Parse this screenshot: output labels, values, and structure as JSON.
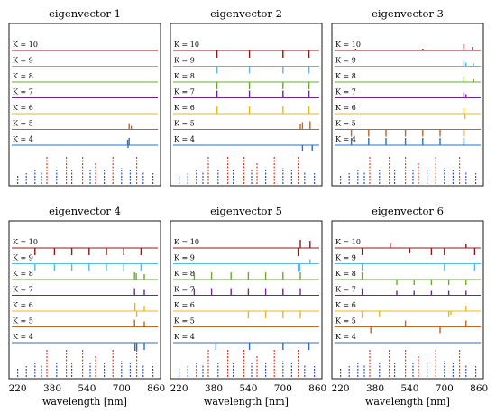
{
  "chart_data": {
    "type": "stem",
    "x_ticks": [
      220,
      380,
      540,
      700,
      860
    ],
    "x_unit_label": "wavelength [nm]",
    "x_range": [
      180,
      880
    ],
    "k_values": [
      10,
      9,
      8,
      7,
      6,
      5,
      4
    ],
    "k_label_prefix": "K = ",
    "row_colors": {
      "10": "#8b1a1a",
      "9": "#5fb4ea",
      "8": "#6aab2e",
      "7": "#6a2a8c",
      "6": "#e7b915",
      "5": "#c1661e",
      "4": "#2e6fc5"
    },
    "baseline_stems": {
      "red": [
        {
          "x": 355,
          "h": 1.0
        },
        {
          "x": 445,
          "h": 1.0
        },
        {
          "x": 520,
          "h": 1.0
        },
        {
          "x": 580,
          "h": 0.8
        },
        {
          "x": 660,
          "h": 1.0
        },
        {
          "x": 770,
          "h": 1.0
        }
      ],
      "blue": [
        {
          "x": 220,
          "h": 0.35
        },
        {
          "x": 260,
          "h": 0.4
        },
        {
          "x": 300,
          "h": 0.5
        },
        {
          "x": 330,
          "h": 0.45
        },
        {
          "x": 400,
          "h": 0.55
        },
        {
          "x": 470,
          "h": 0.5
        },
        {
          "x": 555,
          "h": 0.55
        },
        {
          "x": 620,
          "h": 0.5
        },
        {
          "x": 700,
          "h": 0.6
        },
        {
          "x": 740,
          "h": 0.55
        },
        {
          "x": 800,
          "h": 0.45
        },
        {
          "x": 845,
          "h": 0.4
        }
      ]
    },
    "panels": [
      {
        "title": "eigenvector 1",
        "xlabel": "",
        "rows": [
          {
            "k": 10,
            "stems": []
          },
          {
            "k": 9,
            "stems": []
          },
          {
            "k": 8,
            "stems": []
          },
          {
            "k": 7,
            "stems": []
          },
          {
            "k": 6,
            "stems": []
          },
          {
            "k": 5,
            "stems": [
              {
                "x": 735,
                "v": 0.7
              },
              {
                "x": 745,
                "v": 0.4
              }
            ]
          },
          {
            "k": 4,
            "stems": [
              {
                "x": 728,
                "v": 0.6
              },
              {
                "x": 735,
                "v": 0.8
              },
              {
                "x": 730,
                "v": -0.3
              }
            ]
          }
        ]
      },
      {
        "title": "eigenvector 2",
        "xlabel": "",
        "rows": [
          {
            "k": 10,
            "stems": [
              {
                "x": 395,
                "v": -0.8
              },
              {
                "x": 545,
                "v": -0.8
              },
              {
                "x": 700,
                "v": -0.8
              },
              {
                "x": 820,
                "v": -0.8
              }
            ]
          },
          {
            "k": 9,
            "stems": [
              {
                "x": 395,
                "v": -0.8
              },
              {
                "x": 545,
                "v": -0.8
              },
              {
                "x": 700,
                "v": -0.8
              },
              {
                "x": 820,
                "v": -0.8
              }
            ]
          },
          {
            "k": 8,
            "stems": [
              {
                "x": 395,
                "v": -0.8
              },
              {
                "x": 545,
                "v": -0.8
              },
              {
                "x": 700,
                "v": -0.8
              },
              {
                "x": 820,
                "v": -0.8
              }
            ]
          },
          {
            "k": 7,
            "stems": [
              {
                "x": 395,
                "v": 0.8
              },
              {
                "x": 545,
                "v": 0.8
              },
              {
                "x": 700,
                "v": 0.8
              },
              {
                "x": 820,
                "v": 0.8
              }
            ]
          },
          {
            "k": 6,
            "stems": [
              {
                "x": 395,
                "v": 0.8
              },
              {
                "x": 545,
                "v": 0.8
              },
              {
                "x": 700,
                "v": 0.8
              },
              {
                "x": 820,
                "v": 0.8
              }
            ]
          },
          {
            "k": 5,
            "stems": [
              {
                "x": 780,
                "v": 0.6
              },
              {
                "x": 790,
                "v": 0.8
              },
              {
                "x": 825,
                "v": 0.9
              }
            ]
          },
          {
            "k": 4,
            "stems": [
              {
                "x": 790,
                "v": -0.7
              },
              {
                "x": 835,
                "v": -0.7
              }
            ]
          }
        ]
      },
      {
        "title": "eigenvector 3",
        "xlabel": "",
        "rows": [
          {
            "k": 10,
            "stems": [
              {
                "x": 290,
                "v": 0.2
              },
              {
                "x": 600,
                "v": 0.2
              },
              {
                "x": 790,
                "v": 0.7
              },
              {
                "x": 830,
                "v": 0.4
              }
            ]
          },
          {
            "k": 9,
            "stems": [
              {
                "x": 790,
                "v": 0.6
              },
              {
                "x": 800,
                "v": 0.4
              },
              {
                "x": 835,
                "v": 0.3
              }
            ]
          },
          {
            "k": 8,
            "stems": [
              {
                "x": 790,
                "v": 0.6
              },
              {
                "x": 835,
                "v": 0.3
              }
            ]
          },
          {
            "k": 7,
            "stems": [
              {
                "x": 790,
                "v": 0.6
              },
              {
                "x": 800,
                "v": 0.4
              }
            ]
          },
          {
            "k": 6,
            "stems": [
              {
                "x": 790,
                "v": 0.6
              },
              {
                "x": 795,
                "v": -0.6
              }
            ]
          },
          {
            "k": 5,
            "stems": [
              {
                "x": 270,
                "v": -0.8
              },
              {
                "x": 350,
                "v": -0.8
              },
              {
                "x": 430,
                "v": -0.8
              },
              {
                "x": 520,
                "v": -0.8
              },
              {
                "x": 600,
                "v": -0.8
              },
              {
                "x": 680,
                "v": -0.8
              },
              {
                "x": 790,
                "v": -0.8
              }
            ]
          },
          {
            "k": 4,
            "stems": [
              {
                "x": 270,
                "v": 0.8
              },
              {
                "x": 350,
                "v": 0.8
              },
              {
                "x": 430,
                "v": 0.8
              },
              {
                "x": 520,
                "v": 0.8
              },
              {
                "x": 600,
                "v": 0.8
              },
              {
                "x": 680,
                "v": 0.8
              },
              {
                "x": 790,
                "v": 0.8
              }
            ]
          }
        ]
      },
      {
        "title": "eigenvector 4",
        "xlabel": "wavelength [nm]",
        "rows": [
          {
            "k": 10,
            "stems": [
              {
                "x": 300,
                "v": -0.8
              },
              {
                "x": 390,
                "v": -0.8
              },
              {
                "x": 470,
                "v": -0.8
              },
              {
                "x": 550,
                "v": -0.8
              },
              {
                "x": 630,
                "v": -0.8
              },
              {
                "x": 710,
                "v": -0.8
              },
              {
                "x": 790,
                "v": -0.8
              }
            ]
          },
          {
            "k": 9,
            "stems": [
              {
                "x": 300,
                "v": -0.8
              },
              {
                "x": 390,
                "v": -0.8
              },
              {
                "x": 470,
                "v": -0.8
              },
              {
                "x": 550,
                "v": -0.8
              },
              {
                "x": 630,
                "v": -0.8
              },
              {
                "x": 710,
                "v": -0.8
              },
              {
                "x": 790,
                "v": -0.8
              }
            ]
          },
          {
            "k": 8,
            "stems": [
              {
                "x": 760,
                "v": 0.8
              },
              {
                "x": 768,
                "v": 0.7
              },
              {
                "x": 805,
                "v": 0.6
              }
            ]
          },
          {
            "k": 7,
            "stems": [
              {
                "x": 760,
                "v": 0.8
              },
              {
                "x": 805,
                "v": 0.6
              }
            ]
          },
          {
            "k": 6,
            "stems": [
              {
                "x": 762,
                "v": 0.9
              },
              {
                "x": 770,
                "v": -0.6
              },
              {
                "x": 805,
                "v": 0.6
              }
            ]
          },
          {
            "k": 5,
            "stems": [
              {
                "x": 760,
                "v": 0.8
              },
              {
                "x": 805,
                "v": 0.6
              }
            ]
          },
          {
            "k": 4,
            "stems": [
              {
                "x": 762,
                "v": -0.9
              },
              {
                "x": 770,
                "v": -0.9
              },
              {
                "x": 805,
                "v": -0.8
              }
            ]
          }
        ]
      },
      {
        "title": "eigenvector 5",
        "xlabel": "wavelength [nm]",
        "rows": [
          {
            "k": 10,
            "stems": [
              {
                "x": 770,
                "v": -0.9
              },
              {
                "x": 780,
                "v": 0.9
              },
              {
                "x": 825,
                "v": 0.8
              }
            ]
          },
          {
            "k": 9,
            "stems": [
              {
                "x": 770,
                "v": -0.9
              },
              {
                "x": 778,
                "v": -0.8
              },
              {
                "x": 825,
                "v": 0.5
              }
            ]
          },
          {
            "k": 8,
            "stems": [
              {
                "x": 290,
                "v": 0.8
              },
              {
                "x": 370,
                "v": 0.8
              },
              {
                "x": 460,
                "v": 0.8
              },
              {
                "x": 540,
                "v": 0.8
              },
              {
                "x": 620,
                "v": 0.8
              },
              {
                "x": 700,
                "v": 0.8
              },
              {
                "x": 780,
                "v": 0.8
              }
            ]
          },
          {
            "k": 7,
            "stems": [
              {
                "x": 290,
                "v": 0.8
              },
              {
                "x": 370,
                "v": 0.8
              },
              {
                "x": 460,
                "v": 0.8
              },
              {
                "x": 540,
                "v": 0.8
              },
              {
                "x": 620,
                "v": 0.8
              },
              {
                "x": 700,
                "v": 0.8
              },
              {
                "x": 780,
                "v": 0.8
              }
            ]
          },
          {
            "k": 6,
            "stems": [
              {
                "x": 540,
                "v": -0.8
              },
              {
                "x": 620,
                "v": -0.8
              },
              {
                "x": 700,
                "v": -0.8
              },
              {
                "x": 780,
                "v": -0.8
              }
            ]
          },
          {
            "k": 5,
            "stems": []
          },
          {
            "k": 4,
            "stems": [
              {
                "x": 390,
                "v": -0.8
              },
              {
                "x": 545,
                "v": -0.8
              },
              {
                "x": 700,
                "v": -0.8
              },
              {
                "x": 820,
                "v": -0.8
              }
            ]
          }
        ]
      },
      {
        "title": "eigenvector 6",
        "xlabel": "wavelength [nm]",
        "rows": [
          {
            "k": 10,
            "stems": [
              {
                "x": 320,
                "v": -0.8
              },
              {
                "x": 450,
                "v": 0.5
              },
              {
                "x": 540,
                "v": -0.6
              },
              {
                "x": 640,
                "v": -0.8
              },
              {
                "x": 700,
                "v": -0.8
              },
              {
                "x": 800,
                "v": 0.4
              },
              {
                "x": 840,
                "v": -0.8
              }
            ]
          },
          {
            "k": 9,
            "stems": [
              {
                "x": 320,
                "v": -0.8
              },
              {
                "x": 700,
                "v": -0.8
              },
              {
                "x": 840,
                "v": -0.8
              }
            ]
          },
          {
            "k": 8,
            "stems": [
              {
                "x": 320,
                "v": 0.8
              },
              {
                "x": 480,
                "v": -0.6
              },
              {
                "x": 560,
                "v": -0.6
              },
              {
                "x": 640,
                "v": -0.6
              },
              {
                "x": 720,
                "v": -0.6
              },
              {
                "x": 800,
                "v": -0.6
              }
            ]
          },
          {
            "k": 7,
            "stems": [
              {
                "x": 320,
                "v": 0.8
              },
              {
                "x": 480,
                "v": 0.5
              },
              {
                "x": 560,
                "v": 0.5
              },
              {
                "x": 640,
                "v": 0.5
              },
              {
                "x": 720,
                "v": 0.5
              },
              {
                "x": 800,
                "v": 0.5
              }
            ]
          },
          {
            "k": 6,
            "stems": [
              {
                "x": 320,
                "v": -0.8
              },
              {
                "x": 400,
                "v": -0.6
              },
              {
                "x": 720,
                "v": -0.6
              },
              {
                "x": 730,
                "v": -0.4
              },
              {
                "x": 800,
                "v": 0.6
              }
            ]
          },
          {
            "k": 5,
            "stems": [
              {
                "x": 360,
                "v": -0.7
              },
              {
                "x": 520,
                "v": 0.7
              },
              {
                "x": 680,
                "v": -0.7
              },
              {
                "x": 800,
                "v": 0.7
              }
            ]
          },
          {
            "k": 4,
            "stems": []
          }
        ]
      }
    ]
  }
}
